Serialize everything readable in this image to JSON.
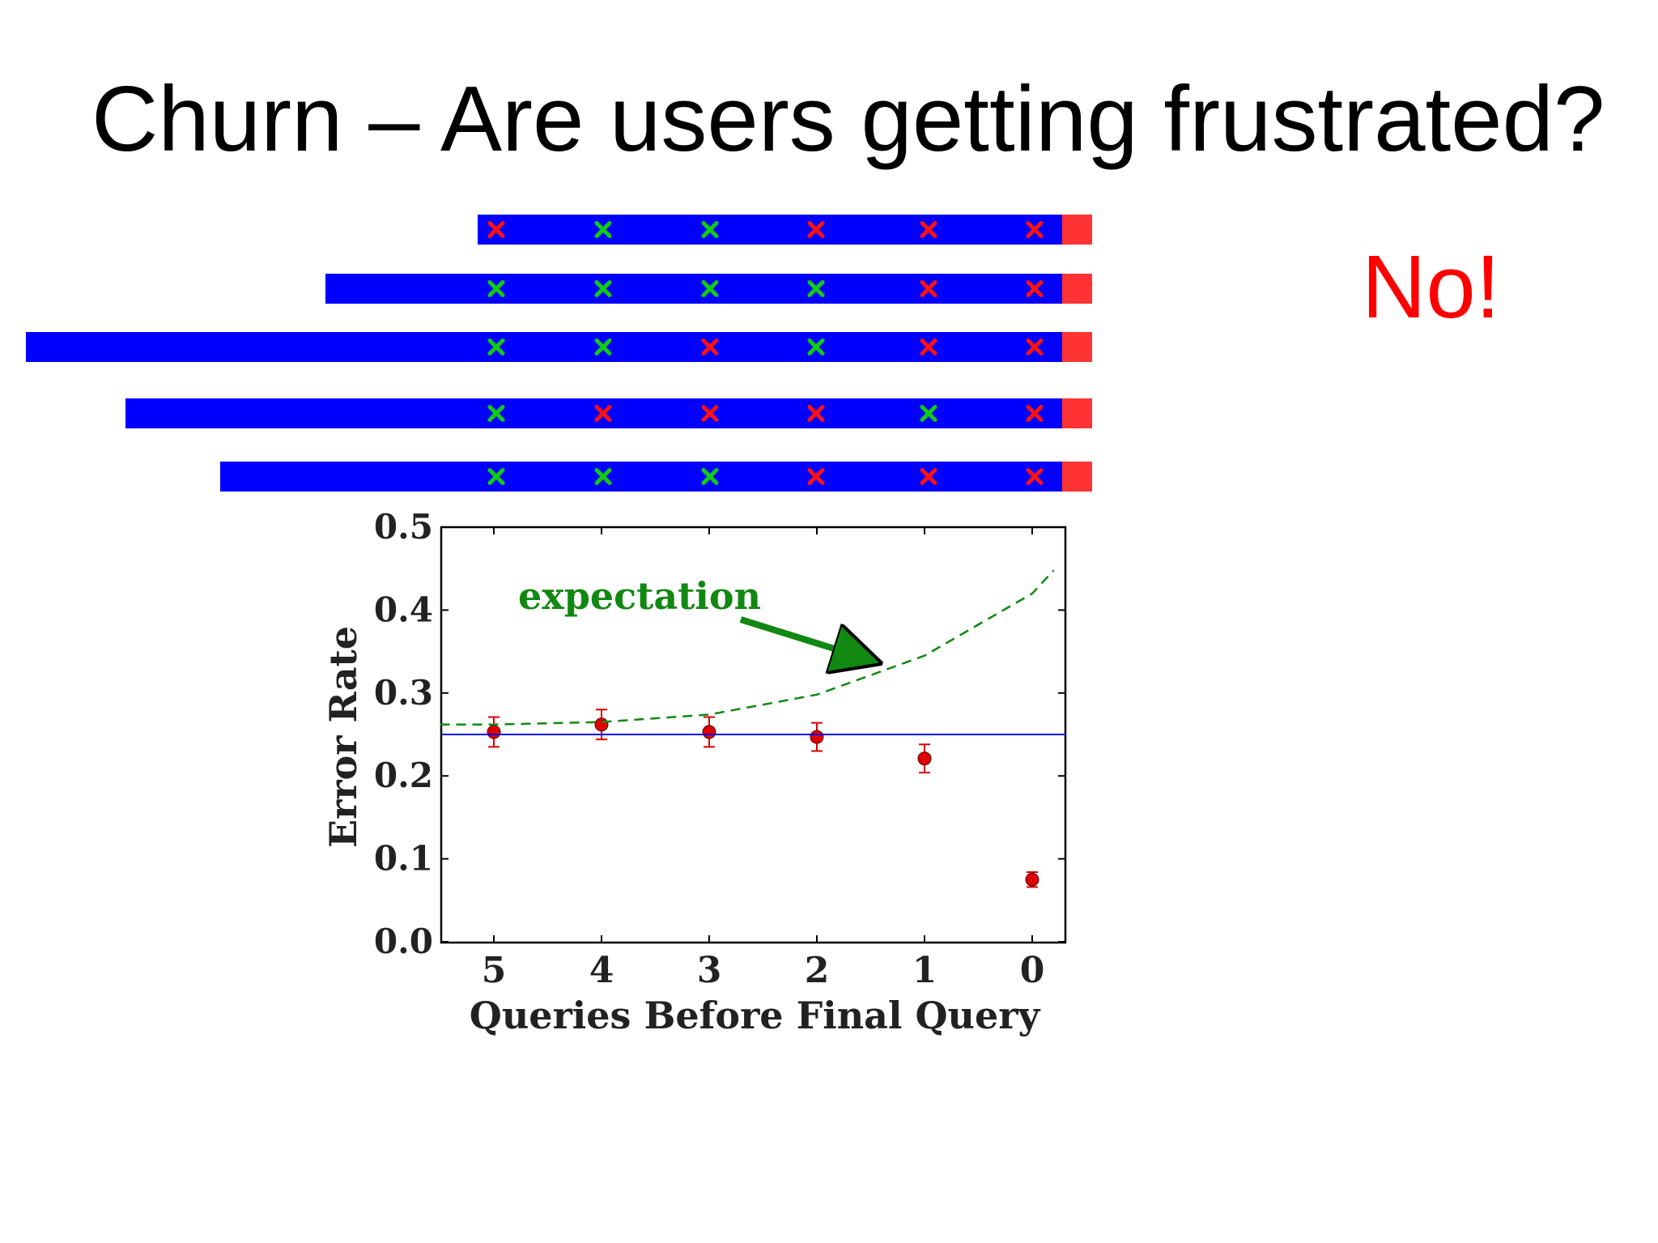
{
  "slide": {
    "title": "Churn – Are users getting frustrated?",
    "answer": "No!"
  },
  "colors": {
    "session_bar": "#0000ff",
    "churn_block": "#ff3333",
    "success_mark": "#11cc11",
    "failure_mark": "#ff1111",
    "observed_points": "#dd0000",
    "baseline_line": "#0000ff",
    "expectation_curve": "#118811",
    "answer_text": "#ff0000"
  },
  "sessions": {
    "icons": {
      "success": "green-x-icon",
      "failure": "red-x-icon",
      "end": "churn-block-icon"
    },
    "rows": [
      {
        "marks": [
          "failure",
          "success",
          "success",
          "failure",
          "failure",
          "failure"
        ]
      },
      {
        "marks": [
          "success",
          "success",
          "success",
          "success",
          "failure",
          "failure"
        ]
      },
      {
        "marks": [
          "success",
          "success",
          "failure",
          "success",
          "failure",
          "failure"
        ]
      },
      {
        "marks": [
          "success",
          "failure",
          "failure",
          "failure",
          "success",
          "failure"
        ]
      },
      {
        "marks": [
          "success",
          "success",
          "success",
          "failure",
          "failure",
          "failure"
        ]
      }
    ]
  },
  "chart_data": {
    "type": "scatter",
    "xlabel": "Queries Before Final Query",
    "ylabel": "Error Rate",
    "x_ticks": [
      "5",
      "4",
      "3",
      "2",
      "1",
      "0"
    ],
    "y_ticks": [
      "0.0",
      "0.1",
      "0.2",
      "0.3",
      "0.4",
      "0.5"
    ],
    "ylim": [
      0.0,
      0.5
    ],
    "grid": false,
    "series": [
      {
        "kind": "points_with_error_bars",
        "x": [
          5,
          4,
          3,
          2,
          1,
          0
        ],
        "y": [
          0.253,
          0.262,
          0.253,
          0.247,
          0.221,
          0.075
        ],
        "yerr": [
          0.018,
          0.018,
          0.018,
          0.017,
          0.017,
          0.009
        ]
      },
      {
        "kind": "horizontal_line",
        "y": 0.25
      },
      {
        "name": "expectation",
        "kind": "dashed_curve",
        "x": [
          5.5,
          5,
          4,
          3,
          2,
          1,
          0,
          -0.2
        ],
        "y": [
          0.262,
          0.262,
          0.265,
          0.274,
          0.298,
          0.345,
          0.42,
          0.448
        ]
      }
    ],
    "annotation": {
      "text": "expectation",
      "points_to": {
        "x": 1.5,
        "y": 0.32
      }
    }
  }
}
